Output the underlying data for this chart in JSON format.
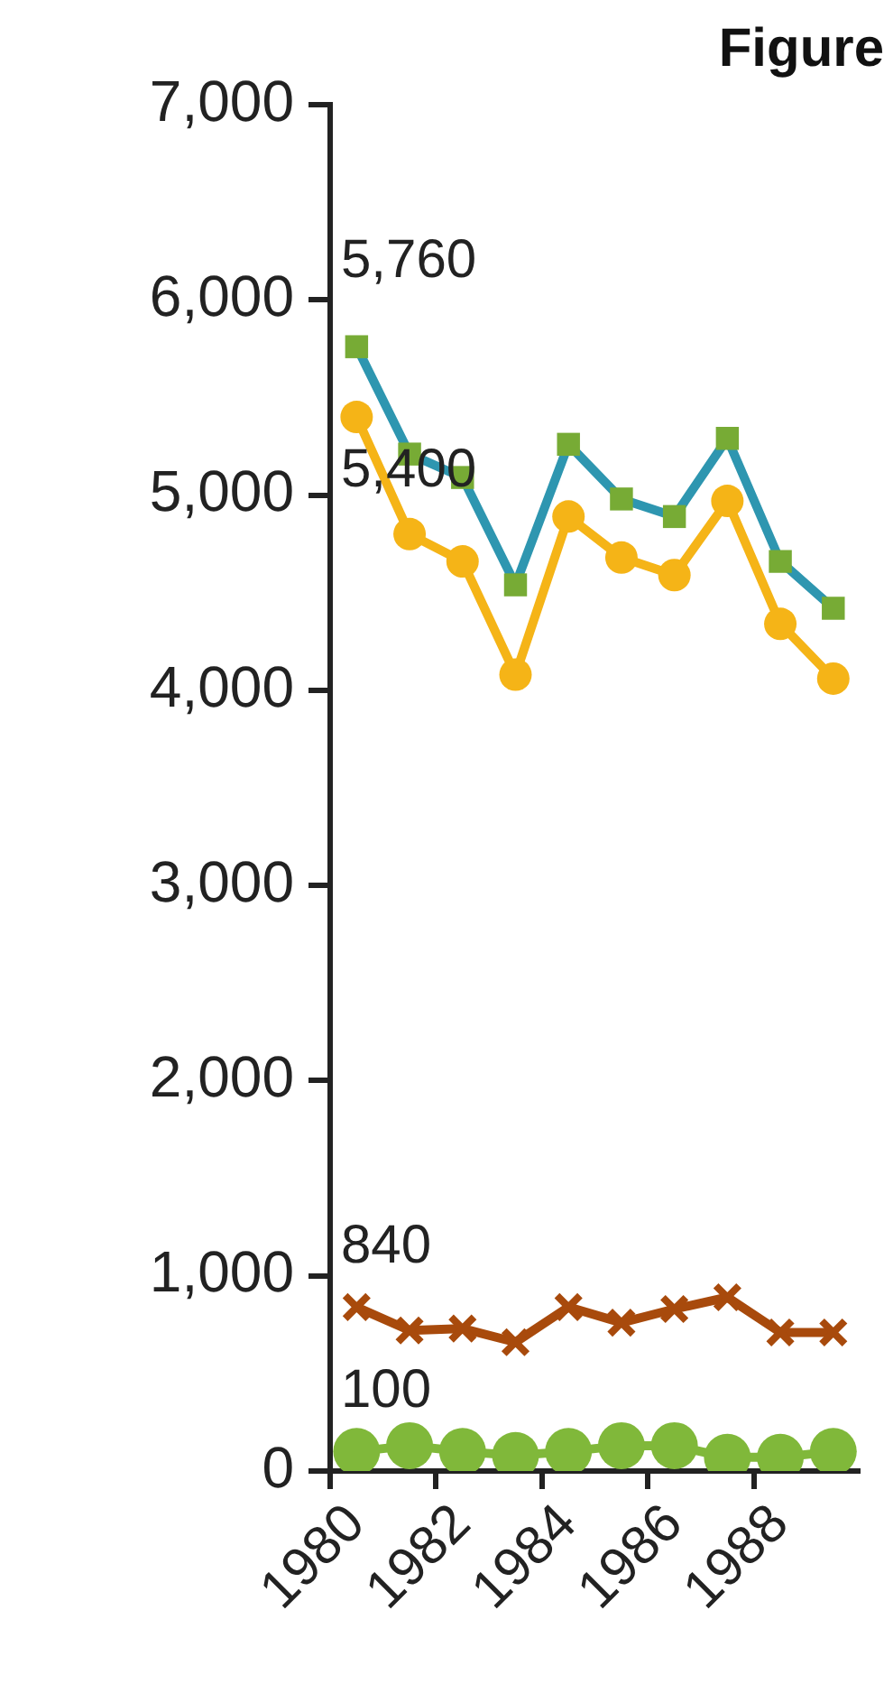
{
  "chart_data": {
    "type": "line",
    "title": "Figure",
    "categories": [
      "1980",
      null,
      "1982",
      null,
      "1984",
      null,
      "1986",
      null,
      "1988",
      null
    ],
    "ylim": [
      0,
      7000
    ],
    "yticks": [
      {
        "value": 0,
        "label": "0"
      },
      {
        "value": 1000,
        "label": "1,000"
      },
      {
        "value": 2000,
        "label": "2,000"
      },
      {
        "value": 3000,
        "label": "3,000"
      },
      {
        "value": 4000,
        "label": "4,000"
      },
      {
        "value": 5000,
        "label": "5,000"
      },
      {
        "value": 6000,
        "label": "6,000"
      },
      {
        "value": 7000,
        "label": "7,000"
      }
    ],
    "grid": false,
    "legend": false,
    "series": [
      {
        "color": "#2e96b0",
        "marker": "square",
        "colors": [
          "#77ab35",
          "#77ab35",
          "#77ab35",
          "#77ab35",
          "#77ab35",
          "#77ab35",
          "#77ab35",
          "#77ab35",
          "#77ab35",
          "#77ab35"
        ],
        "values": [
          5760,
          5210,
          5090,
          4540,
          5260,
          4980,
          4890,
          5290,
          4660,
          4420
        ],
        "value_labels": [
          "5,760",
          null,
          null,
          null,
          null,
          null,
          null,
          null,
          null,
          null
        ]
      },
      {
        "color": "#f5b417",
        "marker": "circle",
        "values": [
          5400,
          4800,
          4660,
          4080,
          4890,
          4680,
          4590,
          4970,
          4340,
          4060
        ],
        "value_labels": [
          "5,400",
          null,
          null,
          null,
          null,
          null,
          null,
          null,
          null,
          null
        ]
      },
      {
        "color": "#a84a0c",
        "marker": "cross",
        "values": [
          840,
          720,
          730,
          660,
          840,
          760,
          830,
          890,
          710,
          710
        ],
        "value_labels": [
          "840",
          null,
          null,
          null,
          null,
          null,
          null,
          null,
          null,
          null
        ]
      },
      {
        "color": "#80b83a",
        "marker": "circle",
        "values": [
          100,
          130,
          100,
          80,
          100,
          130,
          130,
          70,
          70,
          100
        ],
        "value_labels": [
          "100",
          null,
          null,
          null,
          null,
          null,
          null,
          null,
          null,
          null
        ]
      }
    ]
  }
}
